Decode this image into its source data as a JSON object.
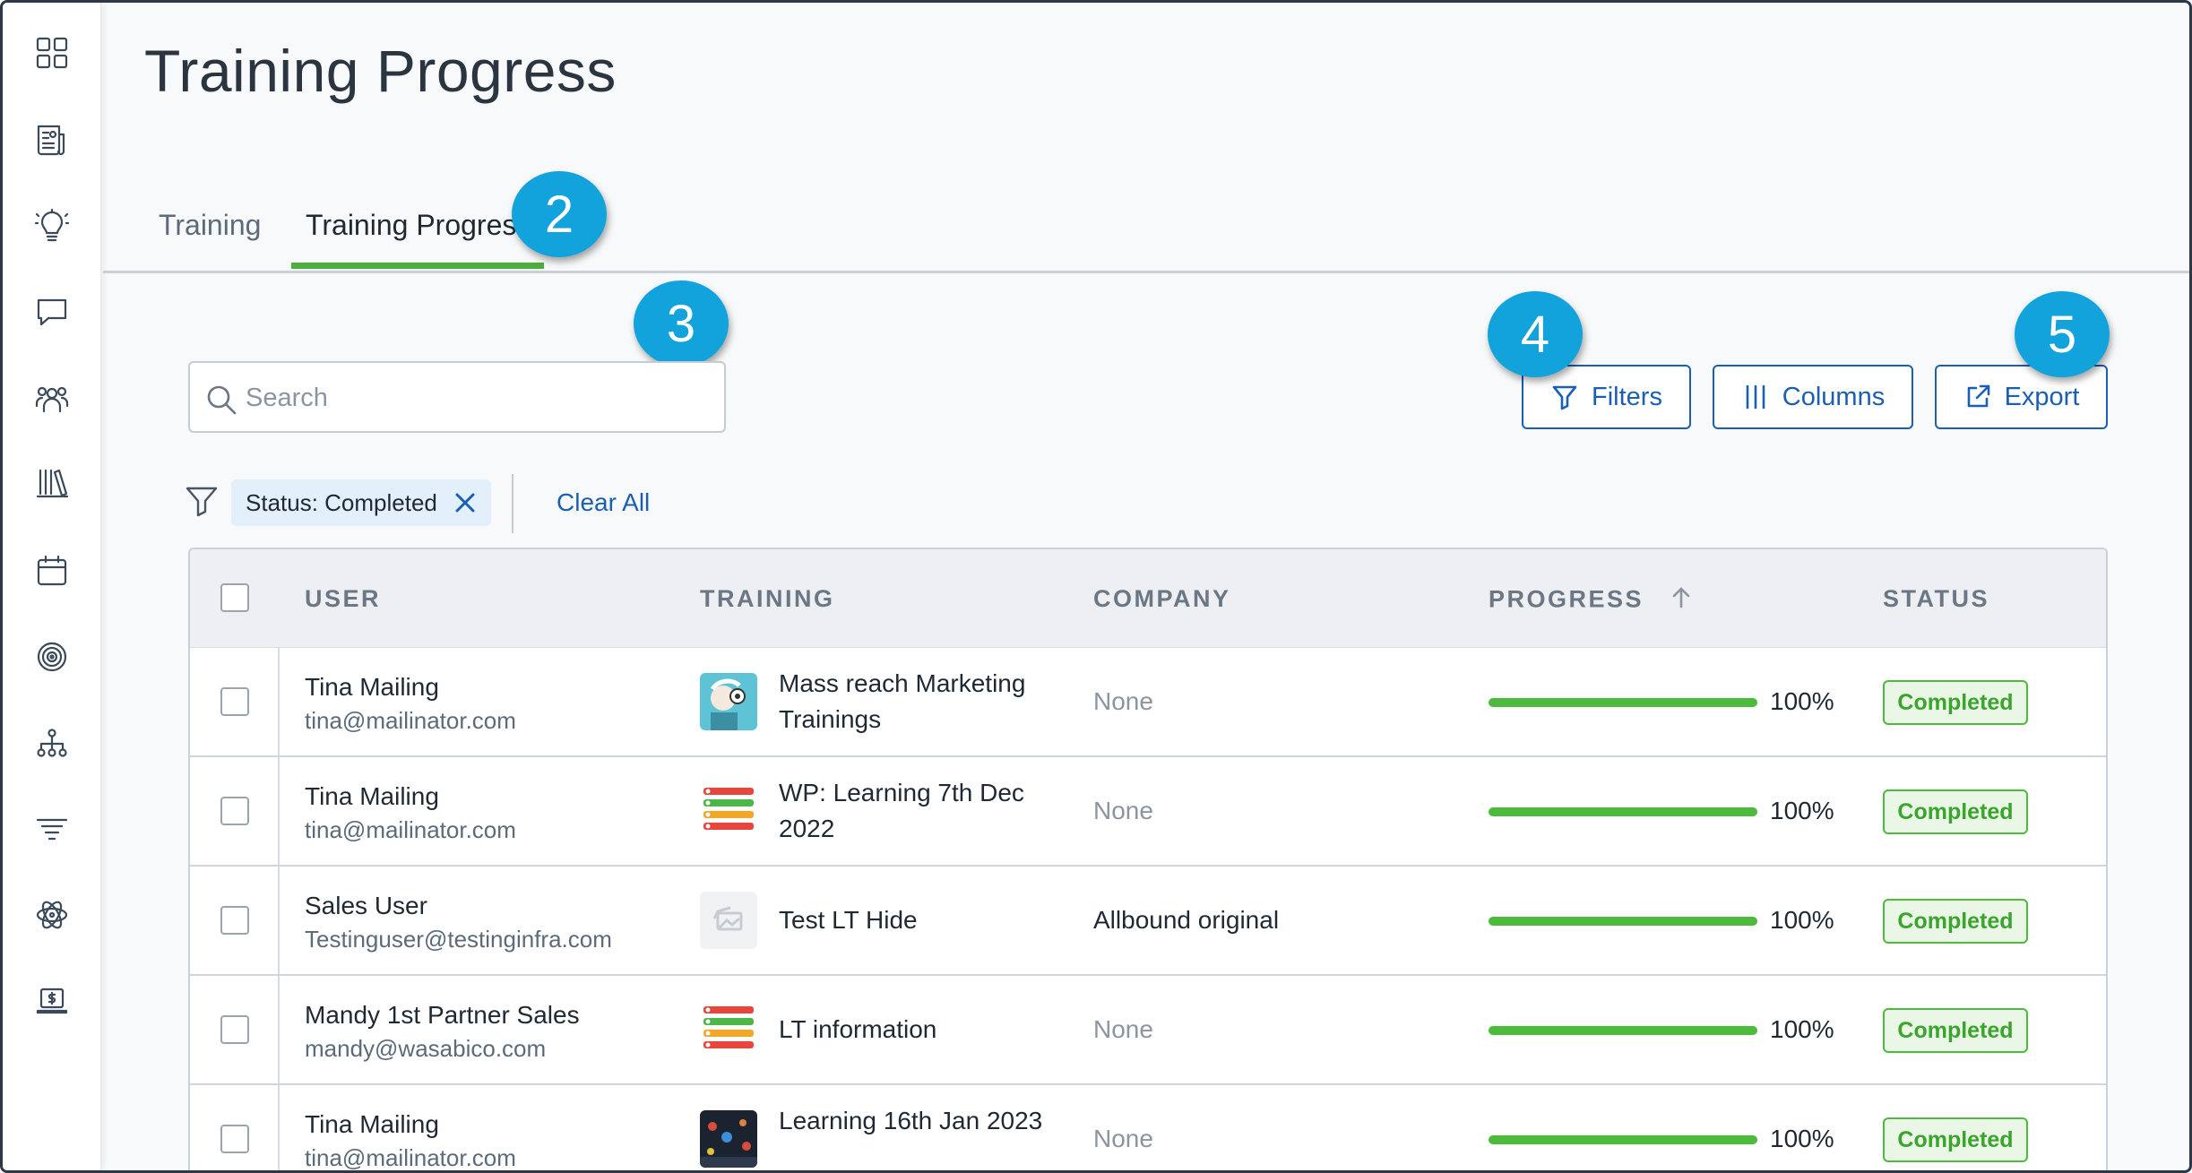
{
  "page": {
    "title": "Training Progress"
  },
  "sidebar": {
    "items": [
      {
        "name": "dashboard-grid-icon"
      },
      {
        "name": "news-icon"
      },
      {
        "name": "lightbulb-icon"
      },
      {
        "name": "chat-bubble-icon"
      },
      {
        "name": "team-icon"
      },
      {
        "name": "library-icon"
      },
      {
        "name": "calendar-icon"
      },
      {
        "name": "target-icon"
      },
      {
        "name": "org-chart-icon"
      },
      {
        "name": "filter-lines-icon"
      },
      {
        "name": "atom-icon"
      },
      {
        "name": "laptop-dollar-icon"
      }
    ]
  },
  "tabs": [
    {
      "label": "Training",
      "active": false
    },
    {
      "label": "Training Progress",
      "active": true
    }
  ],
  "callouts": [
    "2",
    "3",
    "4",
    "5"
  ],
  "search": {
    "placeholder": "Search",
    "value": ""
  },
  "toolbar": {
    "filters_label": "Filters",
    "columns_label": "Columns",
    "export_label": "Export"
  },
  "active_filters": {
    "chips": [
      {
        "label": "Status: Completed"
      }
    ],
    "clear_all_label": "Clear All"
  },
  "table": {
    "columns": [
      "USER",
      "TRAINING",
      "COMPANY",
      "PROGRESS",
      "STATUS"
    ],
    "sorted_column": "PROGRESS",
    "sort_direction": "ascending",
    "rows": [
      {
        "user_name": "Tina Mailing",
        "user_email": "tina@mailinator.com",
        "training": "Mass reach Marketing Trainings",
        "thumb": "cartoon-thumbnail",
        "company": "None",
        "progress": 1.0,
        "progress_label": "100%",
        "status": "Completed"
      },
      {
        "user_name": "Tina Mailing",
        "user_email": "tina@mailinator.com",
        "training": "WP: Learning 7th Dec 2022",
        "thumb": "list-thumbnail",
        "company": "None",
        "progress": 1.0,
        "progress_label": "100%",
        "status": "Completed"
      },
      {
        "user_name": "Sales User",
        "user_email": "Testinguser@testinginfra.com",
        "training": "Test LT Hide",
        "thumb": "placeholder-thumbnail",
        "company": "Allbound original",
        "progress": 1.0,
        "progress_label": "100%",
        "status": "Completed"
      },
      {
        "user_name": "Mandy 1st Partner Sales",
        "user_email": "mandy@wasabico.com",
        "training": "LT information",
        "thumb": "list-thumbnail",
        "company": "None",
        "progress": 1.0,
        "progress_label": "100%",
        "status": "Completed"
      },
      {
        "user_name": "Tina Mailing",
        "user_email": "tina@mailinator.com",
        "training": "Learning 16th Jan 2023",
        "thumb": "photo-thumbnail",
        "company": "None",
        "progress": 1.0,
        "progress_label": "100%",
        "status": "Completed"
      }
    ]
  },
  "colors": {
    "accent_blue": "#1a5fb4",
    "callout_blue": "#12a3dc",
    "success_green": "#4cbb3c",
    "tab_underline": "#4cae3c"
  }
}
